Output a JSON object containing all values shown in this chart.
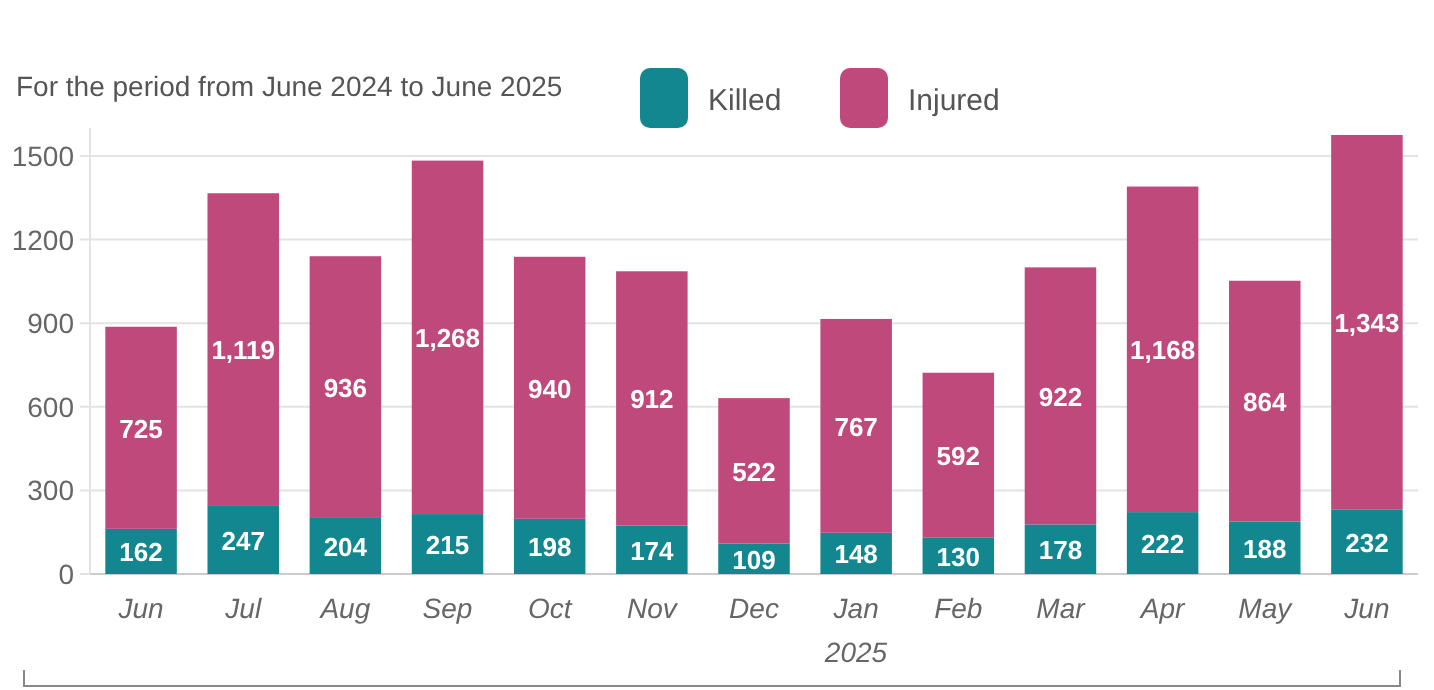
{
  "chart_data": {
    "type": "bar",
    "subtitle": "For the period from June 2024 to June 2025",
    "categories": [
      "Jun",
      "Jul",
      "Aug",
      "Sep",
      "Oct",
      "Nov",
      "Dec",
      "Jan",
      "Feb",
      "Mar",
      "Apr",
      "May",
      "Jun"
    ],
    "series": [
      {
        "name": "Killed",
        "color": "#12878f",
        "values": [
          162,
          247,
          204,
          215,
          198,
          174,
          109,
          148,
          130,
          178,
          222,
          188,
          232
        ],
        "value_labels": [
          "162",
          "247",
          "204",
          "215",
          "198",
          "174",
          "109",
          "148",
          "130",
          "178",
          "222",
          "188",
          "232"
        ]
      },
      {
        "name": "Injured",
        "color": "#c0497b",
        "values": [
          725,
          1119,
          936,
          1268,
          940,
          912,
          522,
          767,
          592,
          922,
          1168,
          864,
          1343
        ],
        "value_labels": [
          "725",
          "1,119",
          "936",
          "1,268",
          "940",
          "912",
          "522",
          "767",
          "592",
          "922",
          "1,168",
          "864",
          "1,343"
        ]
      }
    ],
    "stacked": true,
    "ylim": [
      0,
      1600
    ],
    "yticks": [
      0,
      300,
      600,
      900,
      1200,
      1500
    ],
    "grid": "y",
    "legend": "top",
    "annotations": [
      "2025"
    ]
  }
}
